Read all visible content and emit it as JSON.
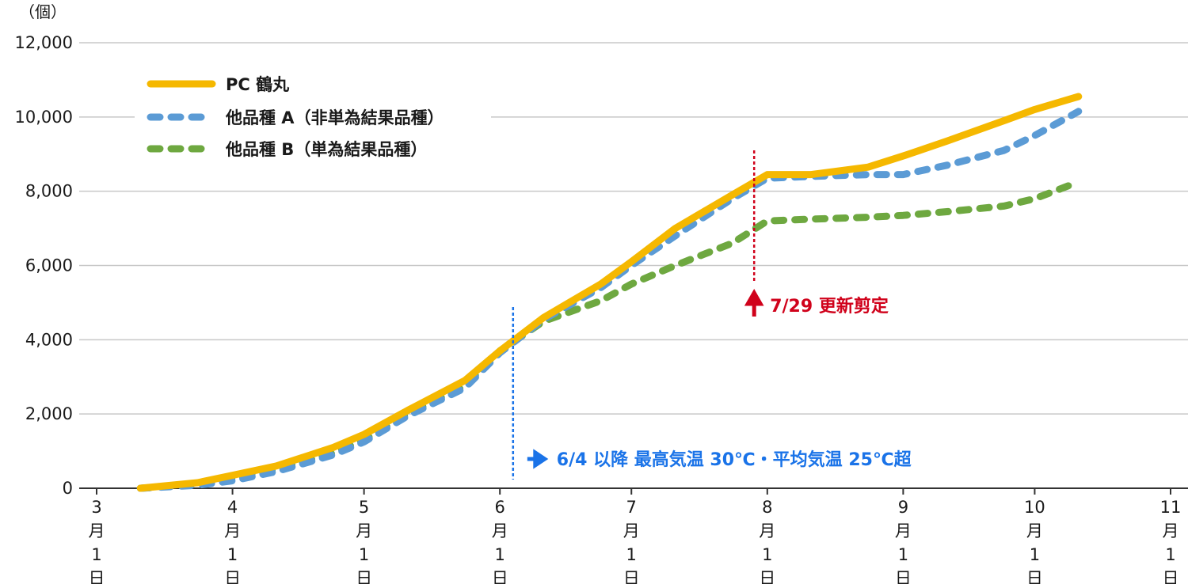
{
  "chart_data": {
    "type": "line",
    "ylabel": "（個）",
    "ylim": [
      0,
      12000
    ],
    "yticks": [
      "0",
      "2,000",
      "4,000",
      "6,000",
      "8,000",
      "10,000",
      "12,000"
    ],
    "xlim": [
      "2024-03-01",
      "2024-11-01"
    ],
    "xticks": [
      {
        "date": "2024-03-01",
        "label": [
          "3",
          "月",
          "1",
          "日"
        ]
      },
      {
        "date": "2024-04-01",
        "label": [
          "4",
          "月",
          "1",
          "日"
        ]
      },
      {
        "date": "2024-05-01",
        "label": [
          "5",
          "月",
          "1",
          "日"
        ]
      },
      {
        "date": "2024-06-01",
        "label": [
          "6",
          "月",
          "1",
          "日"
        ]
      },
      {
        "date": "2024-07-01",
        "label": [
          "7",
          "月",
          "1",
          "日"
        ]
      },
      {
        "date": "2024-08-01",
        "label": [
          "8",
          "月",
          "1",
          "日"
        ]
      },
      {
        "date": "2024-09-01",
        "label": [
          "9",
          "月",
          "1",
          "日"
        ]
      },
      {
        "date": "2024-10-01",
        "label": [
          "10",
          "月",
          "1",
          "日"
        ]
      },
      {
        "date": "2024-11-01",
        "label": [
          "11",
          "月",
          "1",
          "日"
        ]
      }
    ],
    "grid": true,
    "legend_position": "top-left",
    "series": [
      {
        "name": "PC 鶴丸",
        "color": "#f5b800",
        "style": "solid",
        "points": [
          [
            "2024-03-11",
            0
          ],
          [
            "2024-03-24",
            150
          ],
          [
            "2024-04-01",
            350
          ],
          [
            "2024-04-11",
            600
          ],
          [
            "2024-04-24",
            1100
          ],
          [
            "2024-05-01",
            1450
          ],
          [
            "2024-05-11",
            2100
          ],
          [
            "2024-05-24",
            2900
          ],
          [
            "2024-06-01",
            3700
          ],
          [
            "2024-06-11",
            4600
          ],
          [
            "2024-06-24",
            5500
          ],
          [
            "2024-07-01",
            6100
          ],
          [
            "2024-07-11",
            7000
          ],
          [
            "2024-07-24",
            7900
          ],
          [
            "2024-08-01",
            8450
          ],
          [
            "2024-08-11",
            8450
          ],
          [
            "2024-08-24",
            8650
          ],
          [
            "2024-09-01",
            8950
          ],
          [
            "2024-09-11",
            9350
          ],
          [
            "2024-09-24",
            9900
          ],
          [
            "2024-10-01",
            10200
          ],
          [
            "2024-10-11",
            10550
          ]
        ]
      },
      {
        "name": "他品種 A（非単為結果品種）",
        "color": "#5b9bd5",
        "style": "dashed",
        "points": [
          [
            "2024-03-11",
            0
          ],
          [
            "2024-03-24",
            80
          ],
          [
            "2024-04-01",
            200
          ],
          [
            "2024-04-11",
            450
          ],
          [
            "2024-04-24",
            900
          ],
          [
            "2024-05-01",
            1250
          ],
          [
            "2024-05-11",
            1950
          ],
          [
            "2024-05-24",
            2700
          ],
          [
            "2024-06-01",
            3650
          ],
          [
            "2024-06-11",
            4550
          ],
          [
            "2024-06-24",
            5400
          ],
          [
            "2024-07-01",
            6000
          ],
          [
            "2024-07-11",
            6800
          ],
          [
            "2024-07-24",
            7800
          ],
          [
            "2024-08-01",
            8350
          ],
          [
            "2024-08-11",
            8400
          ],
          [
            "2024-08-24",
            8450
          ],
          [
            "2024-09-01",
            8450
          ],
          [
            "2024-09-11",
            8700
          ],
          [
            "2024-09-24",
            9100
          ],
          [
            "2024-10-01",
            9500
          ],
          [
            "2024-10-11",
            10150
          ]
        ]
      },
      {
        "name": "他品種 B（単為結果品種）",
        "color": "#6ea840",
        "style": "dashed",
        "points": [
          [
            "2024-03-11",
            0
          ],
          [
            "2024-03-24",
            100
          ],
          [
            "2024-04-01",
            250
          ],
          [
            "2024-04-11",
            500
          ],
          [
            "2024-04-24",
            950
          ],
          [
            "2024-05-01",
            1300
          ],
          [
            "2024-05-11",
            2000
          ],
          [
            "2024-05-24",
            2750
          ],
          [
            "2024-06-01",
            3700
          ],
          [
            "2024-06-11",
            4500
          ],
          [
            "2024-06-24",
            5050
          ],
          [
            "2024-07-01",
            5500
          ],
          [
            "2024-07-11",
            6000
          ],
          [
            "2024-07-24",
            6600
          ],
          [
            "2024-08-01",
            7200
          ],
          [
            "2024-08-11",
            7250
          ],
          [
            "2024-08-24",
            7300
          ],
          [
            "2024-09-01",
            7350
          ],
          [
            "2024-09-11",
            7450
          ],
          [
            "2024-09-24",
            7600
          ],
          [
            "2024-10-01",
            7800
          ],
          [
            "2024-10-11",
            8250
          ]
        ]
      }
    ],
    "annotations": [
      {
        "date": "2024-06-04",
        "text": "6/4 以降 最高気温 30℃・平均気温 25℃超",
        "color": "#1a73e8"
      },
      {
        "date": "2024-07-29",
        "text": "7/29 更新剪定",
        "color": "#d0021b"
      }
    ]
  }
}
